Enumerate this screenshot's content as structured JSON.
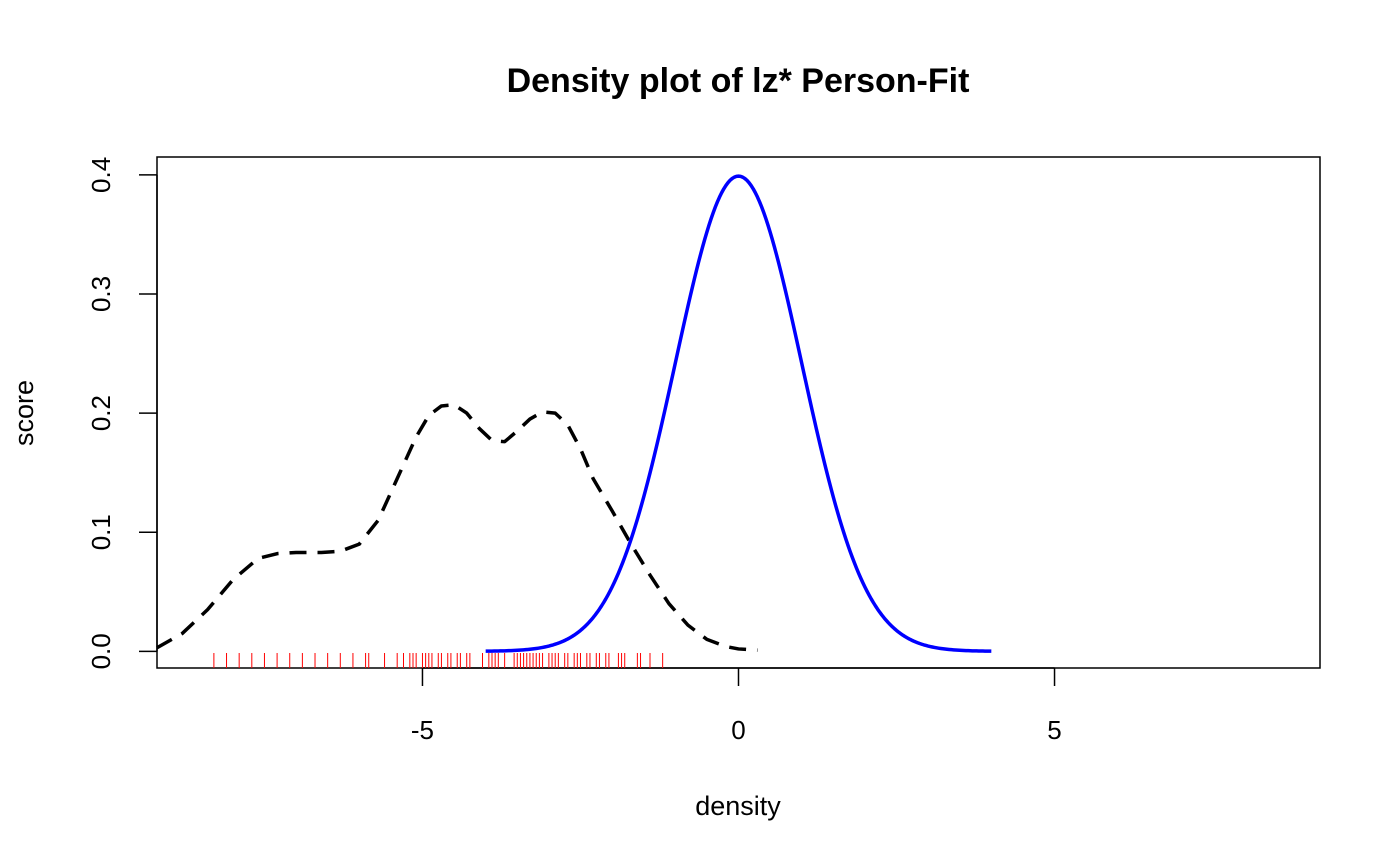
{
  "chart_data": {
    "type": "line",
    "title": "Density plot of lz* Person-Fit",
    "xlabel": "density",
    "ylabel": "score",
    "xlim": [
      -9.2,
      9.2
    ],
    "ylim": [
      -0.014,
      0.415
    ],
    "x_ticks": [
      -5,
      0,
      5
    ],
    "x_tick_labels": [
      "-5",
      "0",
      "5"
    ],
    "y_ticks": [
      0.0,
      0.1,
      0.2,
      0.3,
      0.4
    ],
    "y_tick_labels": [
      "0.0",
      "0.1",
      "0.2",
      "0.3",
      "0.4"
    ],
    "grid": false,
    "legend": "none",
    "series": [
      {
        "style": "dashed",
        "color": "#000000",
        "x": [
          -9.2,
          -8.8,
          -8.4,
          -8.0,
          -7.6,
          -7.3,
          -7.0,
          -6.6,
          -6.3,
          -6.0,
          -5.7,
          -5.4,
          -5.1,
          -4.9,
          -4.7,
          -4.5,
          -4.3,
          -4.1,
          -3.9,
          -3.7,
          -3.5,
          -3.3,
          -3.1,
          -2.9,
          -2.7,
          -2.5,
          -2.3,
          -2.0,
          -1.7,
          -1.4,
          -1.1,
          -0.8,
          -0.5,
          -0.2,
          0.0,
          0.3
        ],
        "y": [
          0.003,
          0.015,
          0.035,
          0.06,
          0.078,
          0.082,
          0.083,
          0.083,
          0.084,
          0.09,
          0.11,
          0.145,
          0.18,
          0.198,
          0.206,
          0.207,
          0.2,
          0.187,
          0.177,
          0.176,
          0.185,
          0.195,
          0.201,
          0.2,
          0.19,
          0.17,
          0.145,
          0.118,
          0.09,
          0.064,
          0.04,
          0.022,
          0.01,
          0.004,
          0.002,
          0.001
        ]
      },
      {
        "style": "solid",
        "color": "#0000ff",
        "distribution": "standard normal density",
        "xrange": [
          -4,
          4
        ]
      }
    ],
    "rug": {
      "color": "#ff0000",
      "x": [
        -8.3,
        -8.1,
        -7.9,
        -7.7,
        -7.5,
        -7.3,
        -7.1,
        -6.9,
        -6.7,
        -6.5,
        -6.3,
        -6.1,
        -5.9,
        -5.85,
        -5.6,
        -5.4,
        -5.3,
        -5.2,
        -5.15,
        -5.1,
        -5.0,
        -4.95,
        -4.9,
        -4.85,
        -4.75,
        -4.7,
        -4.6,
        -4.55,
        -4.45,
        -4.4,
        -4.3,
        -4.25,
        -4.05,
        -3.95,
        -3.9,
        -3.85,
        -3.8,
        -3.7,
        -3.55,
        -3.5,
        -3.45,
        -3.4,
        -3.35,
        -3.3,
        -3.25,
        -3.2,
        -3.15,
        -3.1,
        -3.0,
        -2.95,
        -2.9,
        -2.85,
        -2.75,
        -2.7,
        -2.6,
        -2.55,
        -2.5,
        -2.4,
        -2.35,
        -2.25,
        -2.2,
        -2.1,
        -2.05,
        -1.9,
        -1.85,
        -1.8,
        -1.6,
        -1.55,
        -1.4,
        -1.2
      ]
    }
  }
}
